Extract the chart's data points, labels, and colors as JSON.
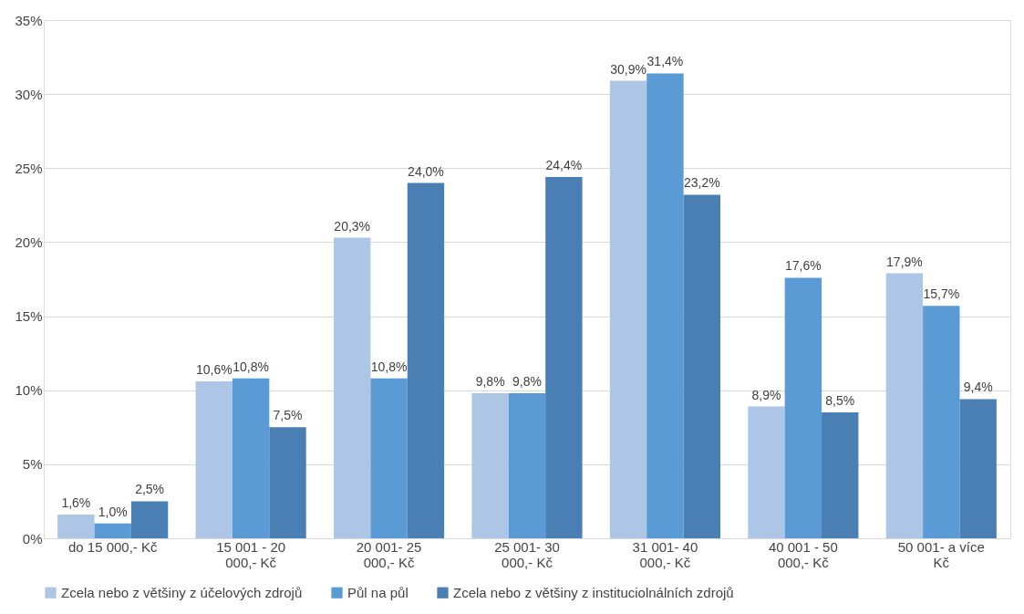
{
  "chart_data": {
    "type": "bar",
    "categories": [
      "do 15 000,- Kč",
      "15 001 - 20\n000,- Kč",
      "20 001- 25\n000,- Kč",
      "25 001- 30\n000,- Kč",
      "31 001- 40\n000,- Kč",
      "40 001 - 50\n000,- Kč",
      "50 001- a více\nKč"
    ],
    "series": [
      {
        "name": "Zcela nebo z většiny z účelových zdrojů",
        "color": "#adc6e6",
        "values": [
          1.6,
          10.6,
          20.3,
          9.8,
          30.9,
          8.9,
          17.9
        ],
        "value_labels": [
          "1,6%",
          "10,6%",
          "20,3%",
          "9,8%",
          "30,9%",
          "8,9%",
          "17,9%"
        ]
      },
      {
        "name": "Půl na půl",
        "color": "#5b9bd5",
        "values": [
          1.0,
          10.8,
          10.8,
          9.8,
          31.4,
          17.6,
          15.7
        ],
        "value_labels": [
          "1,0%",
          "10,8%",
          "10,8%",
          "9,8%",
          "31,4%",
          "17,6%",
          "15,7%"
        ]
      },
      {
        "name": "Zcela nebo z většiny z instituciolnálních zdrojů",
        "color": "#4a7fb3",
        "values": [
          2.5,
          7.5,
          24.0,
          24.4,
          23.2,
          8.5,
          9.4
        ],
        "value_labels": [
          "2,5%",
          "7,5%",
          "24,0%",
          "24,4%",
          "23,2%",
          "8,5%",
          "9,4%"
        ]
      }
    ],
    "ylim": [
      0,
      35
    ],
    "yticks": [
      {
        "value": 0,
        "label": "0%"
      },
      {
        "value": 5,
        "label": "5%"
      },
      {
        "value": 10,
        "label": "10%"
      },
      {
        "value": 15,
        "label": "15%"
      },
      {
        "value": 20,
        "label": "20%"
      },
      {
        "value": 25,
        "label": "25%"
      },
      {
        "value": 30,
        "label": "30%"
      },
      {
        "value": 35,
        "label": "35%"
      }
    ],
    "grid": "y",
    "legend": "bottom"
  }
}
